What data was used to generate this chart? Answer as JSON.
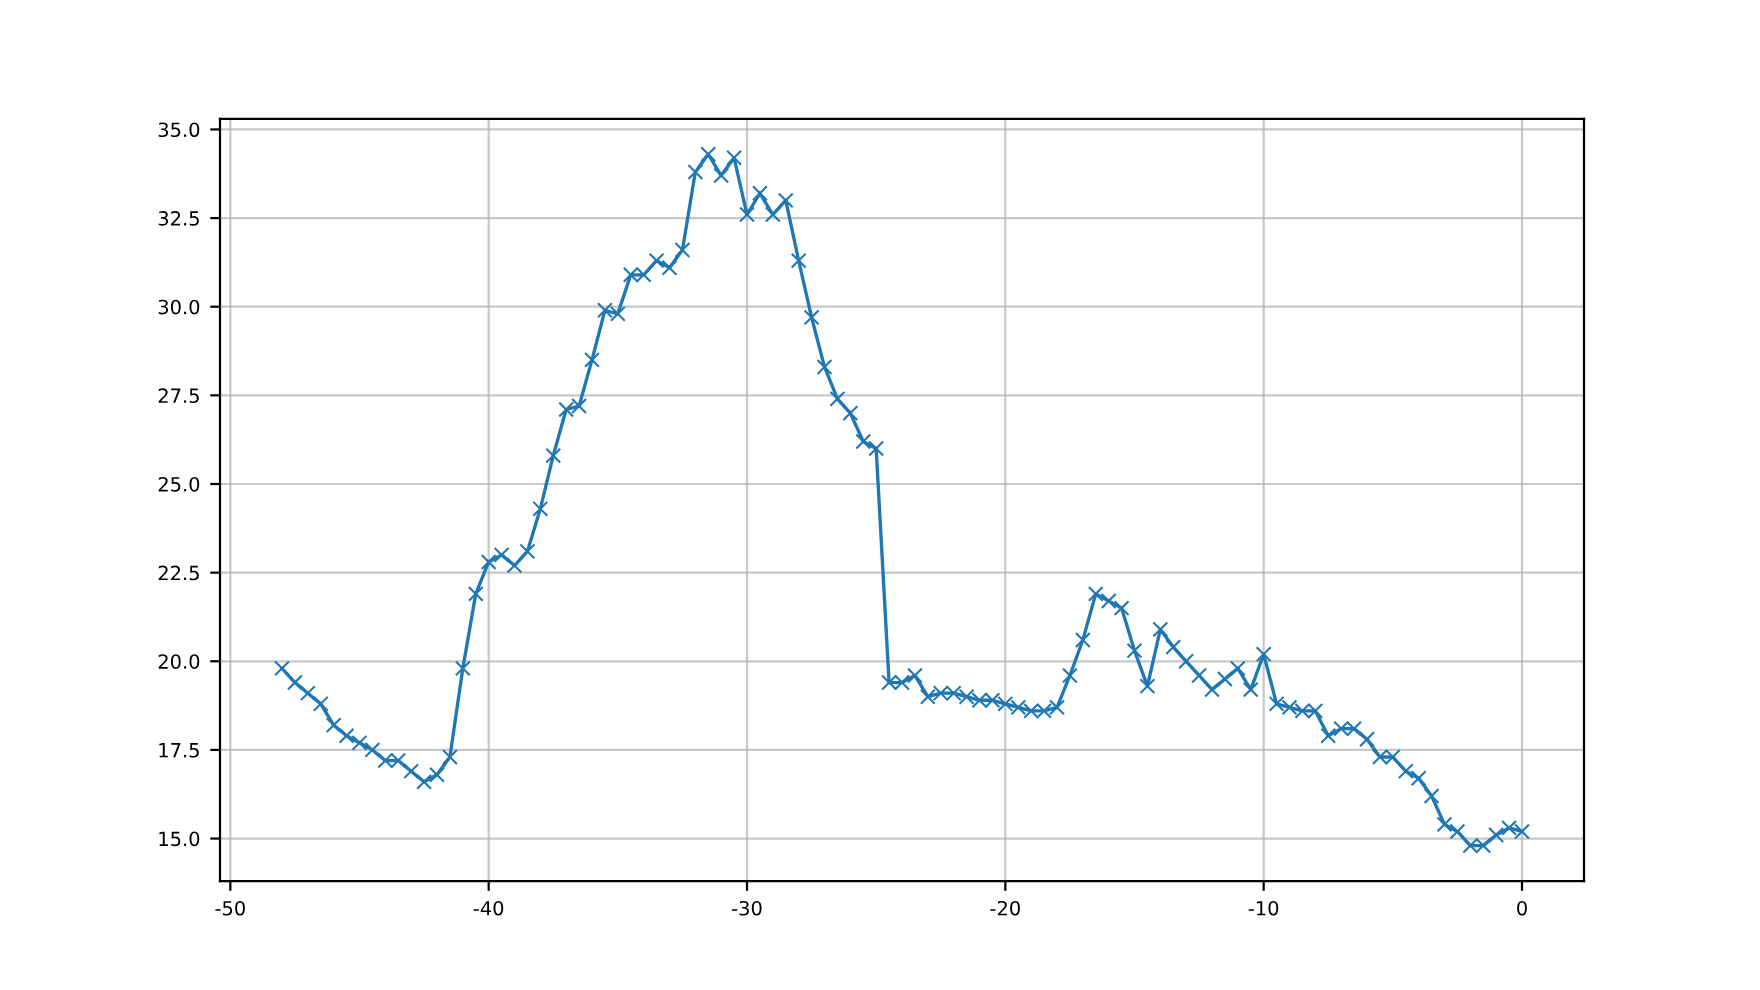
{
  "chart_data": {
    "type": "line",
    "marker": "cross",
    "line_style": "solid",
    "grid": true,
    "x": [
      -48,
      -47.5,
      -47,
      -46.5,
      -46,
      -45.5,
      -45,
      -44.5,
      -44,
      -43.5,
      -43,
      -42.5,
      -42,
      -41.5,
      -41,
      -40.5,
      -40,
      -39.5,
      -39,
      -38.5,
      -38,
      -37.5,
      -37,
      -36.5,
      -36,
      -35.5,
      -35,
      -34.5,
      -34,
      -33.5,
      -33,
      -32.5,
      -32,
      -31.5,
      -31,
      -30.5,
      -30,
      -29.5,
      -29,
      -28.5,
      -28,
      -27.5,
      -27,
      -26.5,
      -26,
      -25.5,
      -25,
      -24.5,
      -24,
      -23.5,
      -23,
      -22.5,
      -22,
      -21.5,
      -21,
      -20.5,
      -20,
      -19.5,
      -19,
      -18.5,
      -18,
      -17.5,
      -17,
      -16.5,
      -16,
      -15.5,
      -15,
      -14.5,
      -14,
      -13.5,
      -13,
      -12.5,
      -12,
      -11.5,
      -11,
      -10.5,
      -10,
      -9.5,
      -9,
      -8.5,
      -8,
      -7.5,
      -7,
      -6.5,
      -6,
      -5.5,
      -5,
      -4.5,
      -4,
      -3.5,
      -3,
      -2.5,
      -2,
      -1.5,
      -1,
      -0.5,
      0
    ],
    "series": [
      {
        "color": "#1f77b4",
        "values": [
          19.8,
          19.4,
          19.1,
          18.8,
          18.2,
          17.9,
          17.7,
          17.5,
          17.2,
          17.2,
          16.9,
          16.6,
          16.8,
          17.3,
          19.8,
          21.9,
          22.8,
          23.0,
          22.7,
          23.1,
          24.3,
          25.8,
          27.1,
          27.2,
          28.5,
          29.9,
          29.8,
          30.9,
          30.9,
          31.3,
          31.1,
          31.6,
          33.8,
          34.3,
          33.7,
          34.2,
          32.6,
          33.2,
          32.6,
          33.0,
          31.3,
          29.7,
          28.3,
          27.4,
          27.0,
          26.2,
          26.0,
          19.4,
          19.4,
          19.6,
          19.0,
          19.1,
          19.1,
          19.0,
          18.9,
          18.9,
          18.8,
          18.7,
          18.6,
          18.6,
          18.7,
          19.6,
          20.6,
          21.9,
          21.7,
          21.5,
          20.3,
          19.3,
          20.9,
          20.4,
          20.0,
          19.6,
          19.2,
          19.5,
          19.8,
          19.2,
          20.2,
          18.8,
          18.7,
          18.6,
          18.6,
          17.9,
          18.1,
          18.1,
          17.8,
          17.3,
          17.3,
          16.9,
          16.7,
          16.2,
          15.4,
          15.2,
          14.8,
          14.8,
          15.1,
          15.3,
          15.2
        ]
      }
    ],
    "xlim": [
      -50.4,
      2.4
    ],
    "xticks": [
      -50,
      -40,
      -30,
      -20,
      -10,
      0
    ],
    "ylim": [
      13.8,
      35.3
    ],
    "yticks": [
      {
        "value": 15,
        "label": "15.0"
      },
      {
        "value": 17.5,
        "label": "17.5"
      },
      {
        "value": 20,
        "label": "20.0"
      },
      {
        "value": 22.5,
        "label": "22.5"
      },
      {
        "value": 25,
        "label": "25.0"
      },
      {
        "value": 27.5,
        "label": "27.5"
      },
      {
        "value": 30,
        "label": "30.0"
      },
      {
        "value": 32.5,
        "label": "32.5"
      },
      {
        "value": 35,
        "label": "35.0"
      }
    ]
  }
}
